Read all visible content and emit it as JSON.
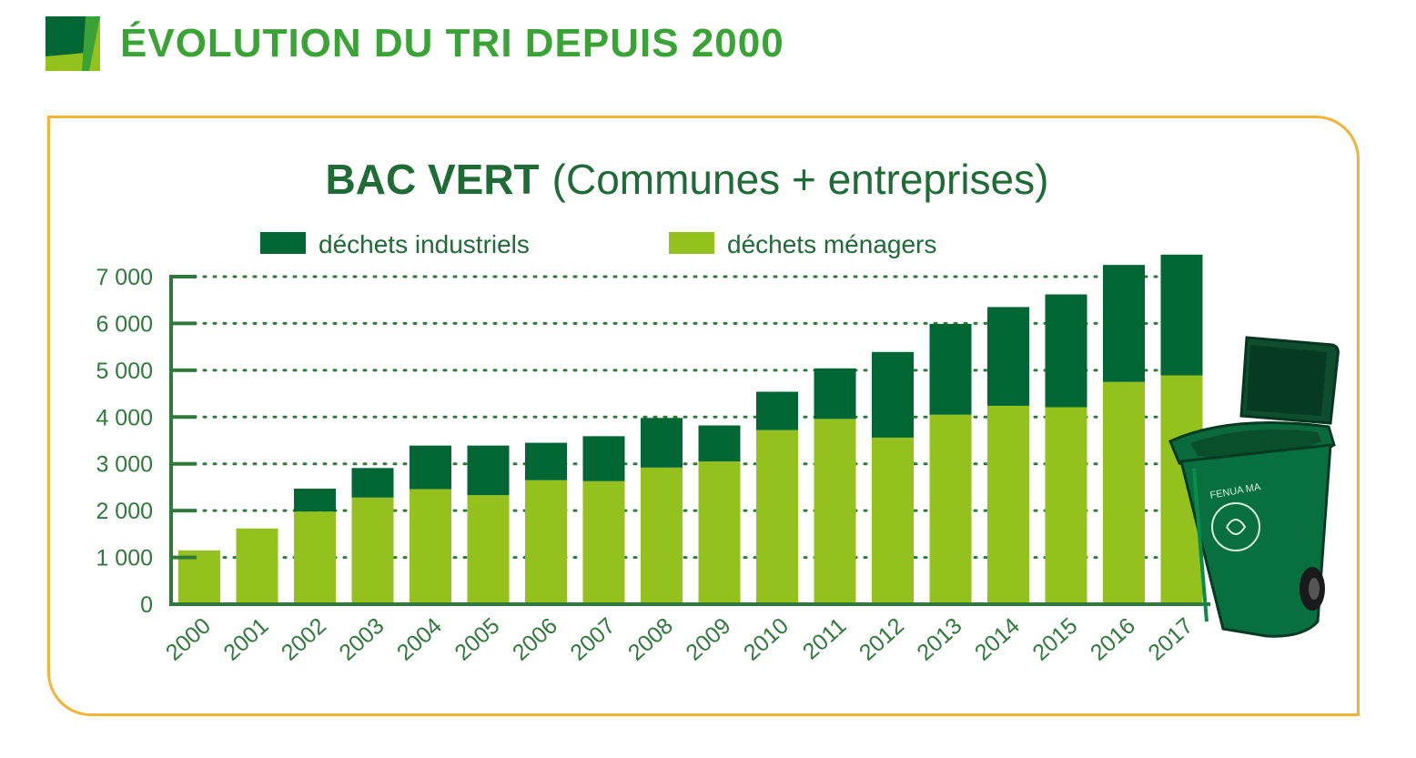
{
  "header": {
    "title": "ÉVOLUTION DU TRI DEPUIS 2000"
  },
  "colors": {
    "title_green": "#3aa335",
    "dark_green": "#006633",
    "light_green": "#95c11f",
    "heading_green": "#1f6b36",
    "axis_green": "#2f7a3a",
    "frame_orange": "#f5b335"
  },
  "bin_icon": {
    "name": "green-bin-icon",
    "label": "FENUA MA"
  },
  "chart_data": {
    "type": "bar",
    "stacked": true,
    "title": "BAC VERT",
    "subtitle": "(Communes + entreprises)",
    "categories": [
      "2000",
      "2001",
      "2002",
      "2003",
      "2004",
      "2005",
      "2006",
      "2007",
      "2008",
      "2009",
      "2010",
      "2011",
      "2012",
      "2013",
      "2014",
      "2015",
      "2016",
      "2017"
    ],
    "series": [
      {
        "name": "déchets ménagers",
        "color": "#95c11f",
        "values": [
          1150,
          1620,
          1980,
          2280,
          2460,
          2330,
          2650,
          2630,
          2920,
          3050,
          3720,
          3960,
          3560,
          4050,
          4240,
          4210,
          4750,
          4890
        ]
      },
      {
        "name": "déchets industriels",
        "color": "#006633",
        "values": [
          0,
          0,
          490,
          630,
          930,
          1060,
          800,
          960,
          1060,
          770,
          820,
          1080,
          1830,
          1940,
          2110,
          2410,
          2500,
          2580
        ]
      }
    ],
    "legend_order": [
      "déchets industriels",
      "déchets ménagers"
    ],
    "ylim": [
      0,
      7000
    ],
    "yticks": [
      0,
      1000,
      2000,
      3000,
      4000,
      5000,
      6000,
      7000
    ],
    "ytick_labels": [
      "0",
      "1 000",
      "2 000",
      "3 000",
      "4 000",
      "5 000",
      "6 000",
      "7 000"
    ],
    "grid": "dotted horizontal",
    "legend_position": "top"
  }
}
